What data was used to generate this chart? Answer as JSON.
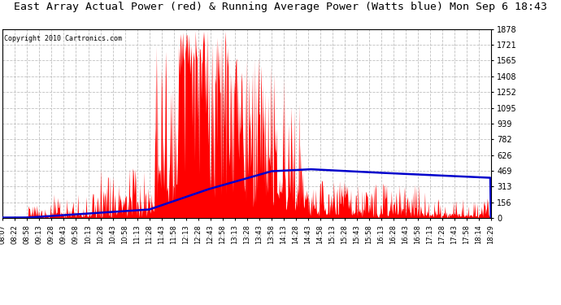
{
  "title": "East Array Actual Power (red) & Running Average Power (Watts blue) Mon Sep 6 18:43",
  "copyright": "Copyright 2010 Cartronics.com",
  "title_fontsize": 10,
  "yticks": [
    0.0,
    156.5,
    312.9,
    469.4,
    625.9,
    782.4,
    938.8,
    1095.3,
    1251.8,
    1408.3,
    1564.7,
    1721.2,
    1877.7
  ],
  "ymax": 1877.7,
  "ymin": 0.0,
  "bg_color": "#ffffff",
  "plot_bg_color": "#ffffff",
  "grid_color": "#c0c0c0",
  "actual_color": "#ff0000",
  "avg_color": "#0000cc",
  "xtick_labels": [
    "08:07",
    "08:22",
    "08:58",
    "09:13",
    "09:28",
    "09:43",
    "09:58",
    "10:13",
    "10:28",
    "10:43",
    "10:58",
    "11:13",
    "11:28",
    "11:43",
    "11:58",
    "12:13",
    "12:28",
    "12:43",
    "12:58",
    "13:13",
    "13:28",
    "13:43",
    "13:58",
    "14:13",
    "14:28",
    "14:43",
    "14:58",
    "15:13",
    "15:28",
    "15:43",
    "15:58",
    "16:13",
    "16:28",
    "16:43",
    "16:58",
    "17:13",
    "17:28",
    "17:43",
    "17:58",
    "18:14",
    "18:29"
  ],
  "n_xticks": 41,
  "n_points": 820
}
